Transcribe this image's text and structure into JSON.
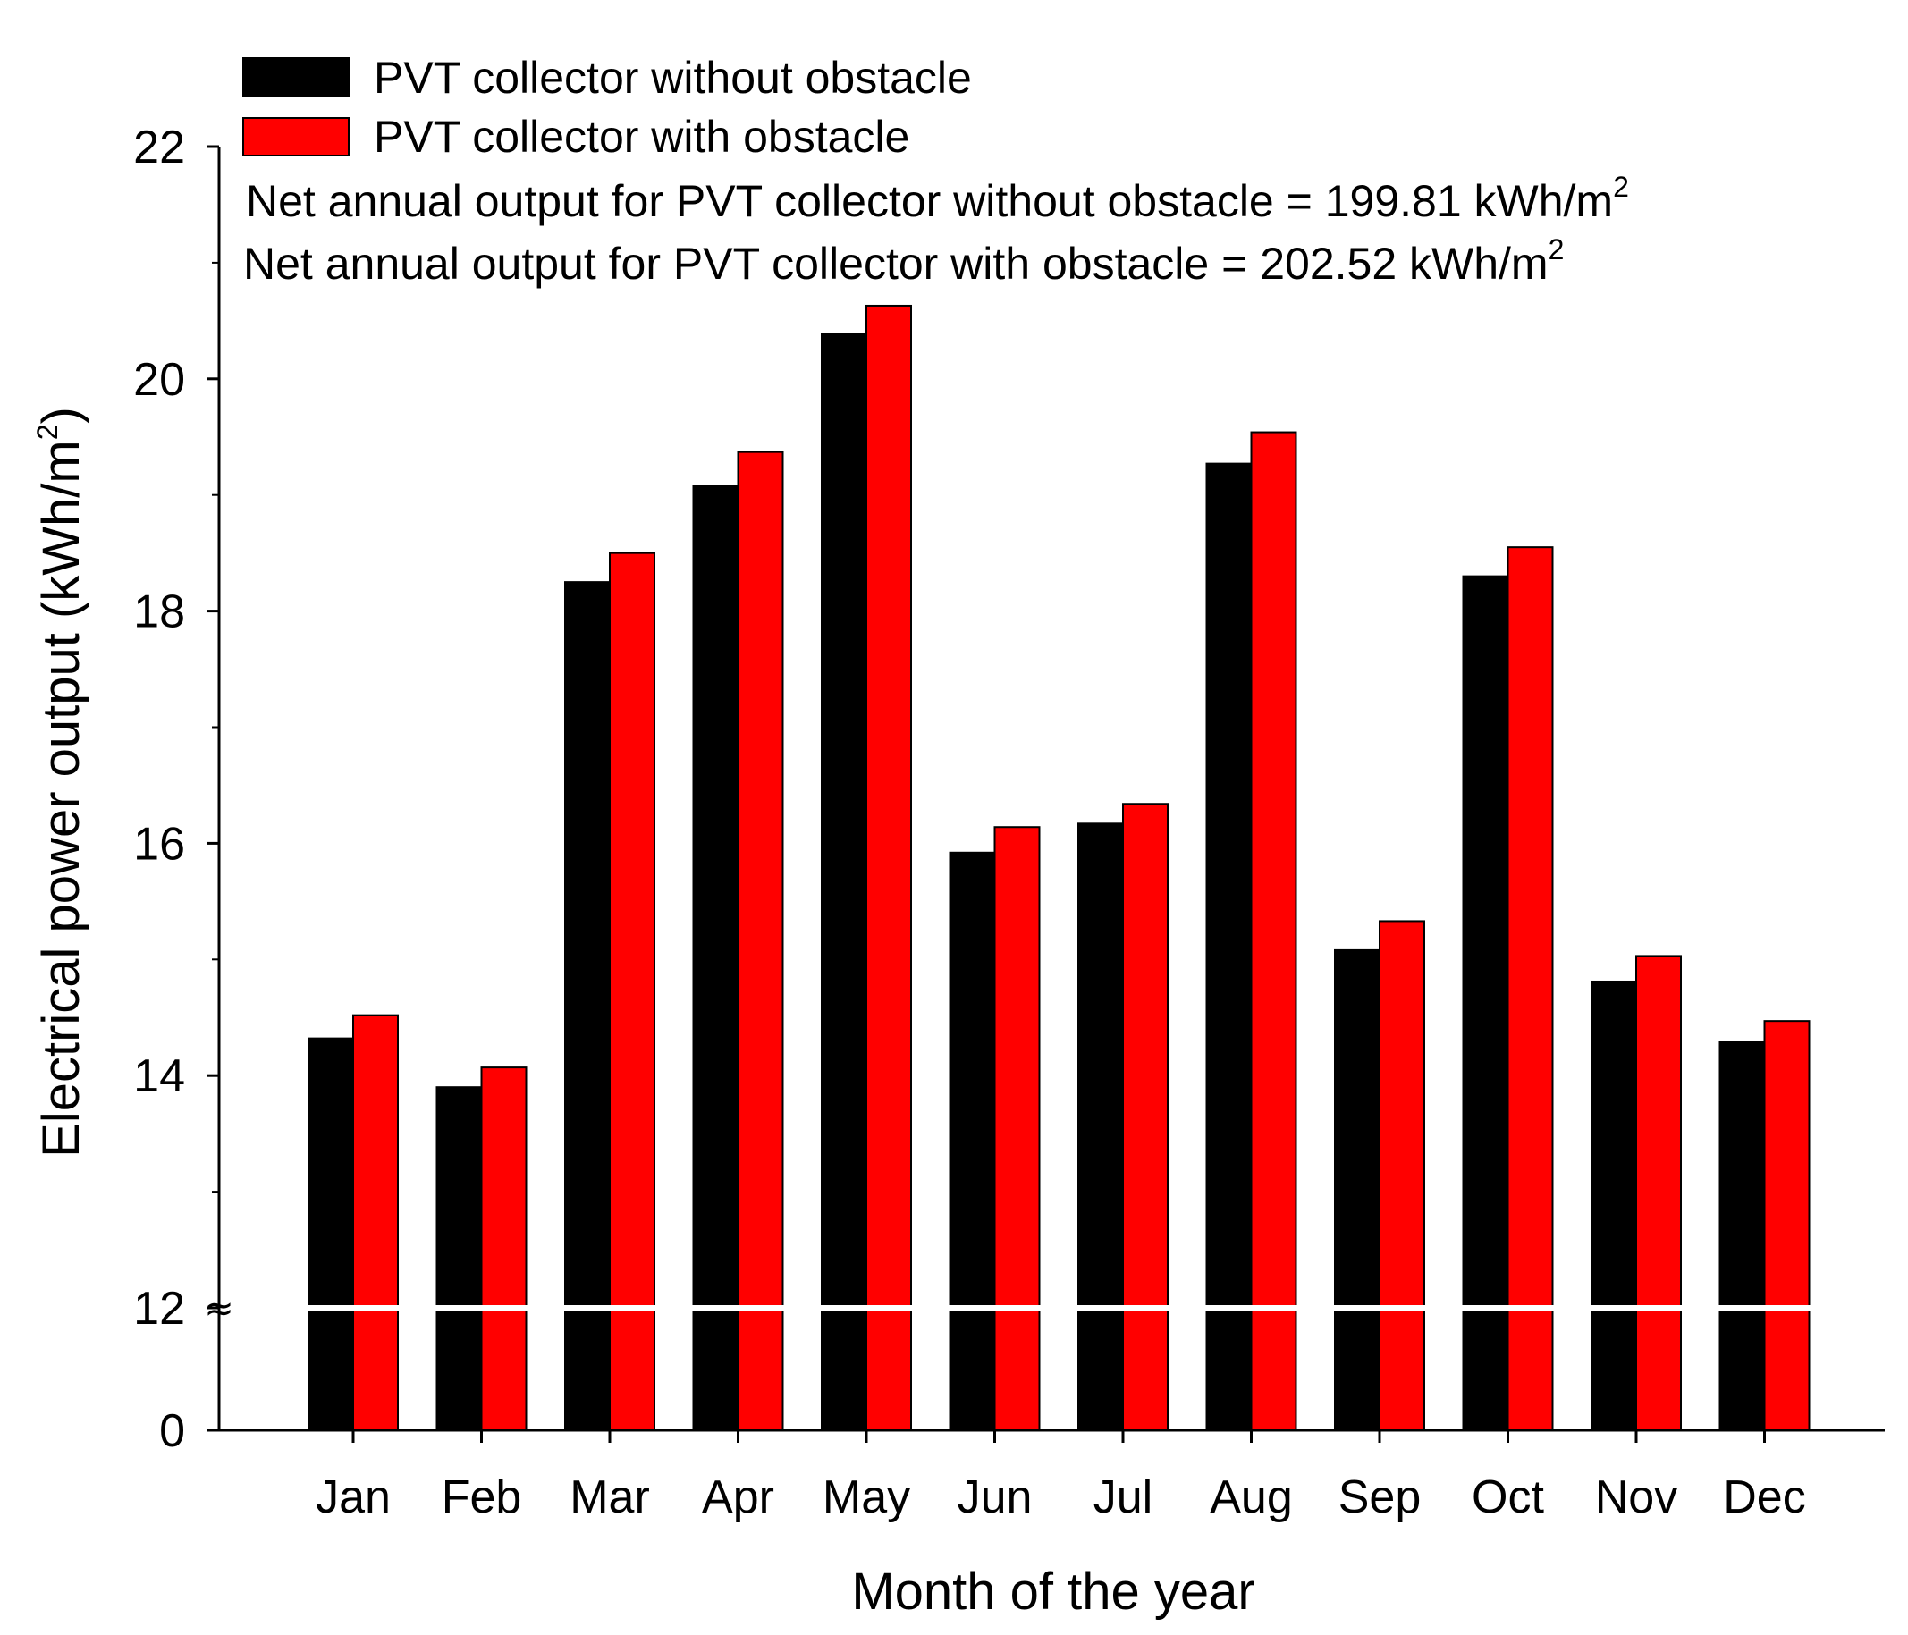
{
  "chart_data": {
    "type": "bar",
    "title": "",
    "xlabel": "Month of the year",
    "ylabel_main": "Electrical power output (kWh/m",
    "ylabel_sup": "2",
    "ylabel_end": ")",
    "categories": [
      "Jan",
      "Feb",
      "Mar",
      "Apr",
      "May",
      "Jun",
      "Jul",
      "Aug",
      "Sep",
      "Oct",
      "Nov",
      "Dec"
    ],
    "series": [
      {
        "name": "PVT collector without obstacle",
        "color": "#000000",
        "values": [
          14.32,
          13.9,
          18.25,
          19.08,
          20.39,
          15.92,
          16.17,
          19.27,
          15.08,
          18.3,
          14.81,
          14.29
        ]
      },
      {
        "name": "PVT collector with obstacle",
        "color": "#ff0000",
        "values": [
          14.52,
          14.07,
          18.5,
          19.37,
          20.63,
          16.14,
          16.34,
          19.54,
          15.33,
          18.55,
          15.03,
          14.47
        ]
      }
    ],
    "y_axis": {
      "broken": true,
      "lower_segment": [
        0,
        12
      ],
      "upper_segment": [
        12,
        22
      ],
      "major_ticks": [
        "0",
        "12",
        "14",
        "16",
        "18",
        "20",
        "22"
      ],
      "minor_ticks": [
        13,
        15,
        17,
        19,
        21
      ],
      "break_symbol": "≈"
    },
    "annotations": [
      {
        "main": "Net annual output for PVT collector without obstacle = 199.81 kWh/m",
        "sup": "2"
      },
      {
        "main": "Net annual output for PVT collector with obstacle = 202.52 kWh/m",
        "sup": "2"
      }
    ],
    "legend_position": "top-left",
    "grid": false
  }
}
